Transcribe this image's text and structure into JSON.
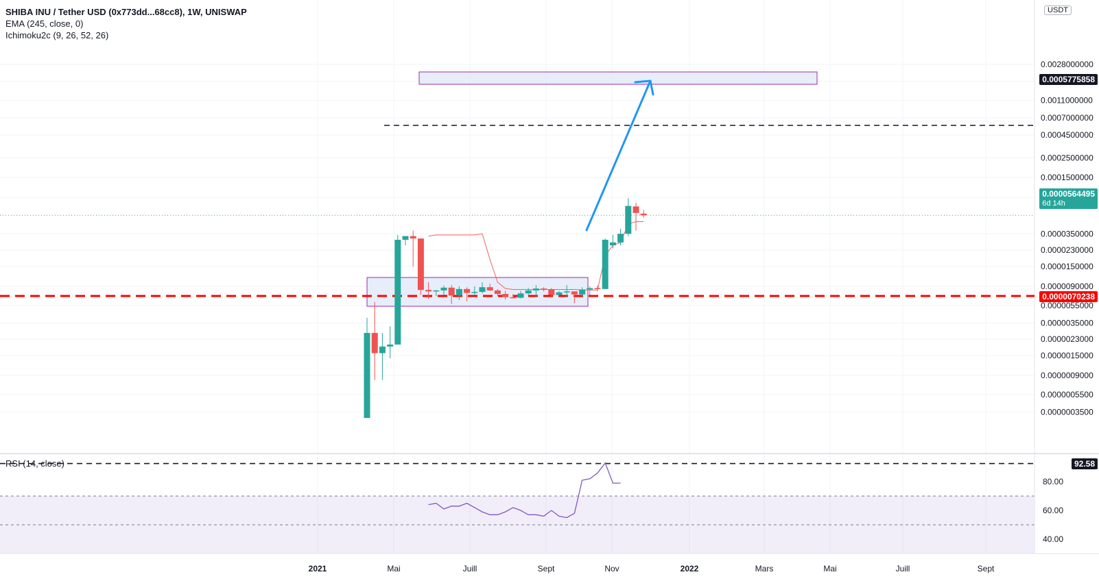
{
  "header": {
    "title": "SHIBA INU / Tether USD (0x773dd...68cc8), 1W, UNISWAP",
    "indicator_ema": "EMA (245, close, 0)",
    "indicator_ichimoku": "Ichimoku2c (9, 26, 52, 26)"
  },
  "quote_unit": "USDT",
  "rsi_label": "RSI (14, close)",
  "price_axis": {
    "scale": "log",
    "ticks": [
      "0.0028000000",
      "0.0018000000",
      "0.0011000000",
      "0.0007000000",
      "0.0004500000",
      "0.0002500000",
      "0.0001500000",
      "0.0000900000",
      "0.0000350000",
      "0.0000230000",
      "0.0000150000",
      "0.0000090000",
      "0.0000055000",
      "0.0000035000",
      "0.0000023000",
      "0.0000015000",
      "0.0000009000",
      "0.0000005500",
      "0.0000003500"
    ]
  },
  "price_tags": {
    "target": "0.0005775858",
    "current": "0.0000564495",
    "countdown": "6d 14h",
    "support": "0.0000070238",
    "rsi_level": "92.58"
  },
  "time_axis": [
    "2021",
    "Mai",
    "Juill",
    "Sept",
    "Nov",
    "2022",
    "Mars",
    "Mai",
    "Juill",
    "Sept"
  ],
  "rsi_axis": [
    "80.00",
    "60.00",
    "40.00"
  ],
  "colors": {
    "up": "#26a69a",
    "down": "#ef5350",
    "rsi": "#7e57c2",
    "arrow": "#2196f3",
    "support": "#ff0000",
    "box_fill": "#e3eaf8",
    "box_border": "#9c27b0",
    "ichimoku": "#f06060"
  },
  "chart_data": {
    "type": "candlestick",
    "timeframe": "1W",
    "candles": [
      {
        "o": 3e-07,
        "h": 4e-06,
        "l": 3e-07,
        "c": 2.7e-06
      },
      {
        "o": 2.7e-06,
        "h": 6e-06,
        "l": 8e-07,
        "c": 1.6e-06
      },
      {
        "o": 1.6e-06,
        "h": 2.7e-06,
        "l": 8e-07,
        "c": 1.9e-06
      },
      {
        "o": 1.9e-06,
        "h": 3.2e-06,
        "l": 1.4e-06,
        "c": 2e-06
      },
      {
        "o": 2e-06,
        "h": 3.4e-05,
        "l": 2e-06,
        "c": 3e-05
      },
      {
        "o": 3e-05,
        "h": 3.3e-05,
        "l": 2.6e-05,
        "c": 3.3e-05
      },
      {
        "o": 3.3e-05,
        "h": 3.8e-05,
        "l": 1.5e-05,
        "c": 3.1e-05
      },
      {
        "o": 3.1e-05,
        "h": 3.1e-05,
        "l": 7.2e-06,
        "c": 8.2e-06
      },
      {
        "o": 8.2e-06,
        "h": 1e-05,
        "l": 6.5e-06,
        "c": 7.9e-06
      },
      {
        "o": 7.9e-06,
        "h": 8.2e-06,
        "l": 7e-06,
        "c": 8.1e-06
      },
      {
        "o": 8.1e-06,
        "h": 9.2e-06,
        "l": 7.2e-06,
        "c": 8.7e-06
      },
      {
        "o": 8.7e-06,
        "h": 9.3e-06,
        "l": 5.7e-06,
        "c": 7.1e-06
      },
      {
        "o": 7.1e-06,
        "h": 9e-06,
        "l": 6.3e-06,
        "c": 8.4e-06
      },
      {
        "o": 8.4e-06,
        "h": 8.8e-06,
        "l": 6.1e-06,
        "c": 7.6e-06
      },
      {
        "o": 7.6e-06,
        "h": 9e-06,
        "l": 7.1e-06,
        "c": 7.8e-06
      },
      {
        "o": 7.8e-06,
        "h": 1e-05,
        "l": 7.5e-06,
        "c": 8.8e-06
      },
      {
        "o": 8.8e-06,
        "h": 9.6e-06,
        "l": 8e-06,
        "c": 8.1e-06
      },
      {
        "o": 8.1e-06,
        "h": 8.4e-06,
        "l": 7e-06,
        "c": 7.4e-06
      },
      {
        "o": 7.4e-06,
        "h": 8e-06,
        "l": 6.4e-06,
        "c": 6.8e-06
      },
      {
        "o": 6.8e-06,
        "h": 7.4e-06,
        "l": 6.6e-06,
        "c": 6.7e-06
      },
      {
        "o": 6.7e-06,
        "h": 8e-06,
        "l": 6.6e-06,
        "c": 7.5e-06
      },
      {
        "o": 7.5e-06,
        "h": 8.6e-06,
        "l": 7.1e-06,
        "c": 8.1e-06
      },
      {
        "o": 8.1e-06,
        "h": 9.3e-06,
        "l": 6.9e-06,
        "c": 8.5e-06
      },
      {
        "o": 8.5e-06,
        "h": 8.8e-06,
        "l": 7.9e-06,
        "c": 8.3e-06
      },
      {
        "o": 8.3e-06,
        "h": 8.6e-06,
        "l": 6.8e-06,
        "c": 7.2e-06
      },
      {
        "o": 7.2e-06,
        "h": 8e-06,
        "l": 7e-06,
        "c": 7.7e-06
      },
      {
        "o": 7.7e-06,
        "h": 9.3e-06,
        "l": 6.8e-06,
        "c": 7.9e-06
      },
      {
        "o": 7.9e-06,
        "h": 7.9e-06,
        "l": 5.8e-06,
        "c": 7.3e-06
      },
      {
        "o": 7.3e-06,
        "h": 8.8e-06,
        "l": 7e-06,
        "c": 8.3e-06
      },
      {
        "o": 8.3e-06,
        "h": 9e-06,
        "l": 7.2e-06,
        "c": 8.6e-06
      },
      {
        "o": 8.6e-06,
        "h": 9.2e-06,
        "l": 7.9e-06,
        "c": 8.4e-06
      },
      {
        "o": 8.4e-06,
        "h": 3.1e-05,
        "l": 8.4e-06,
        "c": 3e-05
      },
      {
        "o": 2.6e-05,
        "h": 3.4e-05,
        "l": 2.4e-05,
        "c": 2.8e-05
      },
      {
        "o": 2.8e-05,
        "h": 4e-05,
        "l": 2.6e-05,
        "c": 3.5e-05
      },
      {
        "o": 3.5e-05,
        "h": 8.8e-05,
        "l": 3.3e-05,
        "c": 7.2e-05
      },
      {
        "o": 7.1e-05,
        "h": 7.8e-05,
        "l": 3.8e-05,
        "c": 6e-05
      },
      {
        "o": 5.9e-05,
        "h": 6.5e-05,
        "l": 5.3e-05,
        "c": 5.65e-05
      }
    ],
    "ichimoku_line": [
      3.3e-05,
      3.4e-05,
      3.4e-05,
      3.4e-05,
      3.4e-05,
      3.4e-05,
      3.4e-05,
      3.5e-05,
      1.8e-05,
      1e-05,
      8.5e-06,
      8.3e-06,
      8.3e-06,
      8.3e-06,
      8.3e-06,
      8.3e-06,
      8.3e-06,
      8.3e-06,
      8.3e-06,
      8.3e-06,
      8.2e-06,
      8.2e-06,
      8.2e-06,
      2e-05,
      2.6e-05,
      2.8e-05,
      4.5e-05,
      4.8e-05,
      4.8e-05
    ],
    "rsi": [
      64,
      65,
      61,
      63,
      63,
      65,
      62,
      59,
      57,
      57,
      59,
      62,
      60,
      57,
      57,
      56,
      60,
      56,
      55,
      58,
      81,
      82,
      86,
      93,
      79,
      79
    ],
    "rsi_overbought": 70,
    "rsi_oversold": 30,
    "support_level": 7.0238e-06,
    "target_level": 0.0005775858,
    "current_price": 5.64495e-05
  }
}
